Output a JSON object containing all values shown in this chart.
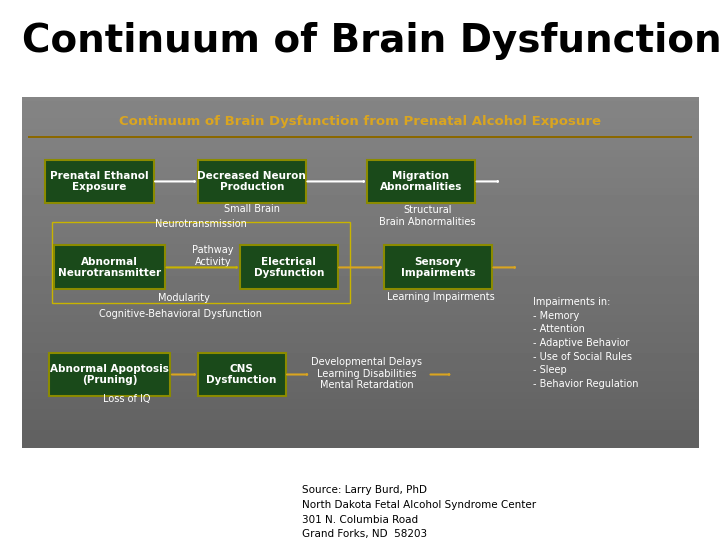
{
  "title": "Continuum of Brain Dysfunction",
  "title_fontsize": 28,
  "title_color": "#000000",
  "title_weight": "bold",
  "bg_color": "#ffffff",
  "panel_bg_top": "#3a3a3a",
  "panel_bg_bottom": "#606060",
  "panel_title": "Continuum of Brain Dysfunction from Prenatal Alcohol Exposure",
  "panel_title_color": "#DAA520",
  "panel_title_fontsize": 9.5,
  "dark_green": "#1a4a1a",
  "box_border": "#8B8B00",
  "arrow_white": "#ffffff",
  "arrow_gold": "#DAA520",
  "source_text": "Source: Larry Burd, PhD\nNorth Dakota Fetal Alcohol Syndrome Center\n301 N. Columbia Road\nGrand Forks, ND  58203",
  "source_fontsize": 7.5
}
